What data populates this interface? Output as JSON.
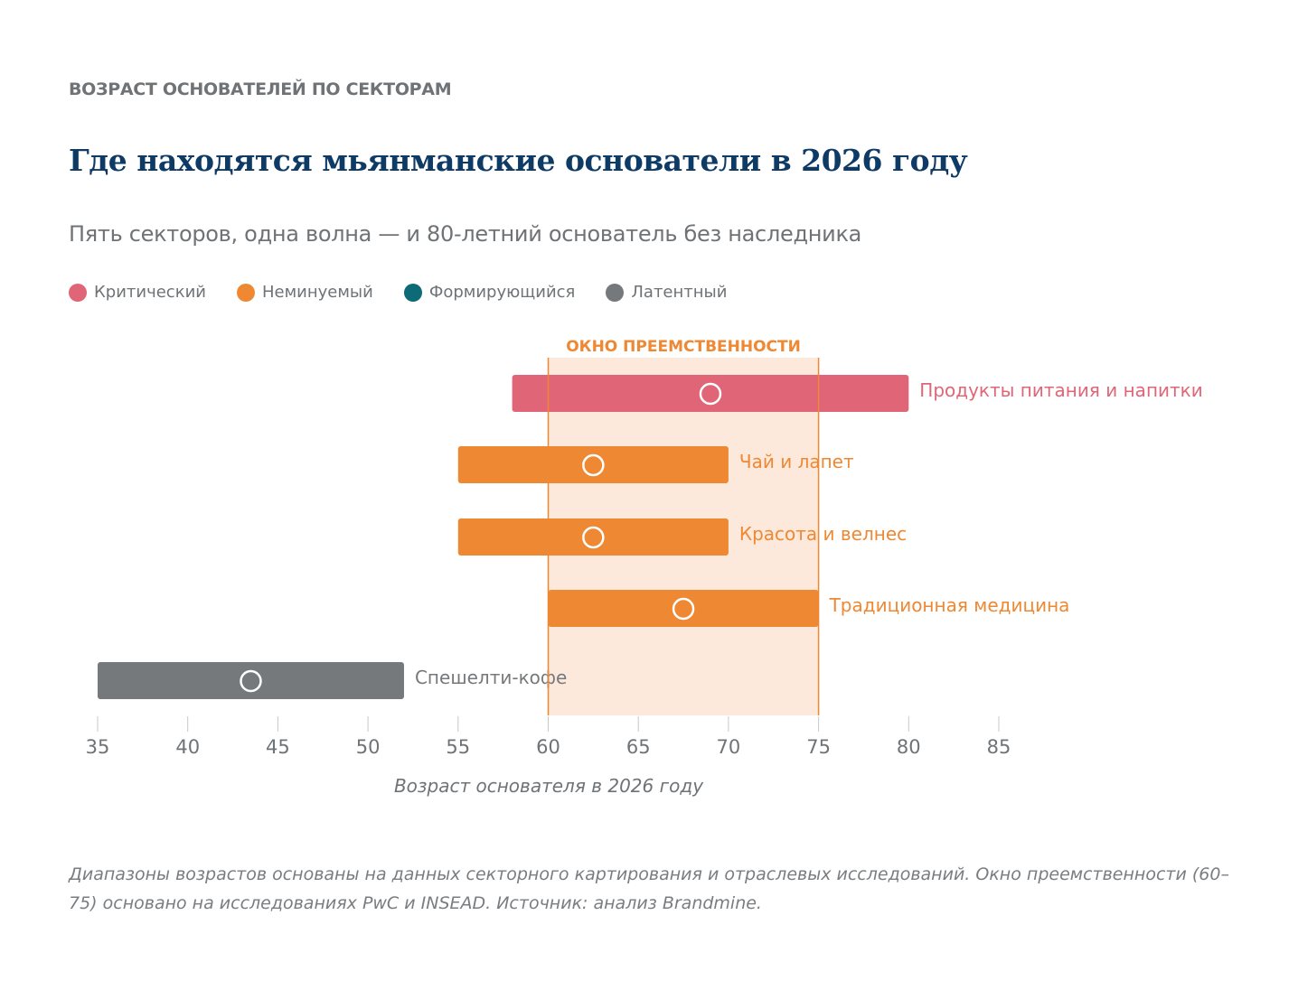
{
  "kicker": "ВОЗРАСТ ОСНОВАТЕЛЕЙ ПО СЕКТОРАМ",
  "title": "Где находятся мьянманские основатели в 2026 году",
  "subtitle": "Пять секторов, одна волна — и 80-летний основатель без наследника",
  "legend": [
    {
      "label": "Критический",
      "color": "#e06677"
    },
    {
      "label": "Неминуемый",
      "color": "#ee8833"
    },
    {
      "label": "Формирующийся",
      "color": "#0d6b78"
    },
    {
      "label": "Латентный",
      "color": "#75797b"
    }
  ],
  "note": "Диапазоны возрастов основаны на данных секторного картирования и отраслевых исследований. Окно преемственности (60–75) основано на исследованиях PwC и INSEAD. Источник: анализ Brandmine.",
  "chart_data": {
    "type": "range-bar",
    "xlabel": "Возраст основателя в 2026 году",
    "xlim": [
      35,
      85
    ],
    "xticks": [
      35,
      40,
      45,
      50,
      55,
      60,
      65,
      70,
      75,
      80,
      85
    ],
    "window": {
      "label": "ОКНО ПРЕЕМСТВЕННОСТИ",
      "from": 60,
      "to": 75,
      "color": "#ee8833",
      "fill": "#fce9dc"
    },
    "series": [
      {
        "name": "Продукты питания и напитки",
        "status": "Критический",
        "min": 58,
        "max": 80,
        "marker": 69,
        "color": "#e06677"
      },
      {
        "name": "Чай и лапет",
        "status": "Неминуемый",
        "min": 55,
        "max": 70,
        "marker": 62.5,
        "color": "#ee8833"
      },
      {
        "name": "Красота и велнес",
        "status": "Неминуемый",
        "min": 55,
        "max": 70,
        "marker": 62.5,
        "color": "#ee8833"
      },
      {
        "name": "Традиционная медицина",
        "status": "Неминуемый",
        "min": 60,
        "max": 75,
        "marker": 67.5,
        "color": "#ee8833"
      },
      {
        "name": "Спешелти-кофе",
        "status": "Латентный",
        "min": 35,
        "max": 52,
        "marker": 43.5,
        "color": "#75797b"
      }
    ]
  }
}
